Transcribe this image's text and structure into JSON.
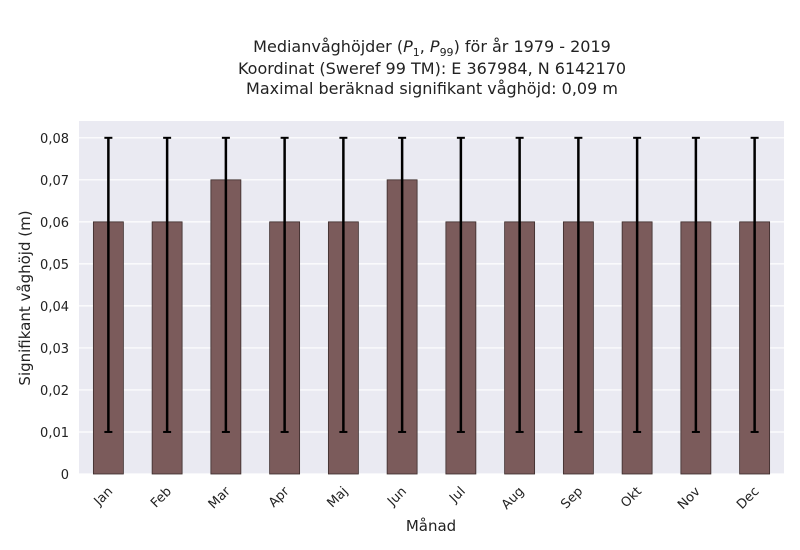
{
  "chart_data": {
    "type": "bar",
    "title": {
      "line1_prefix": "Medianvåghöjder (",
      "line1_p1": "P",
      "line1_p1_sub": "1",
      "line1_sep": ", ",
      "line1_p99": "P",
      "line1_p99_sub": "99",
      "line1_suffix": ") för år 1979 - 2019",
      "line2": "Koordinat (Sweref 99 TM): E 367984, N 6142170",
      "line3": "Maximal beräknad signifikant våghöjd: 0,09 m"
    },
    "xlabel": "Månad",
    "ylabel": "Signifikant våghöjd (m)",
    "categories": [
      "Jan",
      "Feb",
      "Mar",
      "Apr",
      "Maj",
      "Jun",
      "Jul",
      "Aug",
      "Sep",
      "Okt",
      "Nov",
      "Dec"
    ],
    "values": [
      0.06,
      0.06,
      0.07,
      0.06,
      0.06,
      0.07,
      0.06,
      0.06,
      0.06,
      0.06,
      0.06,
      0.06
    ],
    "error_low": [
      0.01,
      0.01,
      0.01,
      0.01,
      0.01,
      0.01,
      0.01,
      0.01,
      0.01,
      0.01,
      0.01,
      0.01
    ],
    "error_high": [
      0.08,
      0.08,
      0.08,
      0.08,
      0.08,
      0.08,
      0.08,
      0.08,
      0.08,
      0.08,
      0.08,
      0.08
    ],
    "ylim": [
      0,
      0.084
    ],
    "yticks": [
      0,
      0.01,
      0.02,
      0.03,
      0.04,
      0.05,
      0.06,
      0.07,
      0.08
    ],
    "ytick_labels": [
      "0",
      "0,01",
      "0,02",
      "0,03",
      "0,04",
      "0,05",
      "0,06",
      "0,07",
      "0,08"
    ],
    "grid": true,
    "colors": {
      "bar": "#7b5b5b",
      "bar_edge": "#3a2a2a",
      "error": "#000000",
      "plot_bg": "#eaeaf2",
      "grid": "#ffffff"
    }
  }
}
